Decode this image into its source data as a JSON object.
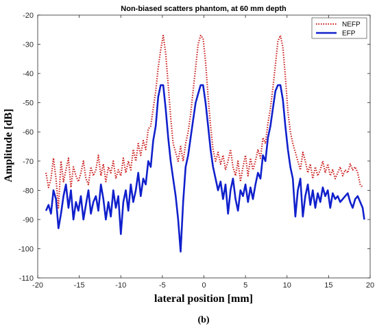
{
  "chart_data": {
    "type": "line",
    "title": "Non-biased scatters phantom, at 60 mm depth",
    "xlabel": "lateral position [mm]",
    "ylabel": "Amplitude [dB]",
    "caption": "(b)",
    "xlim": [
      -20,
      20
    ],
    "ylim": [
      -110,
      -20
    ],
    "xticks": [
      -20,
      -15,
      -10,
      -5,
      0,
      5,
      10,
      15,
      20
    ],
    "yticks": [
      -110,
      -100,
      -90,
      -80,
      -70,
      -60,
      -50,
      -40,
      -30,
      -20
    ],
    "grid": false,
    "legend": "top-right",
    "series": [
      {
        "name": "NEFP",
        "color": "#cc2020",
        "style": "dotted",
        "x": [
          -19.0,
          -18.7,
          -18.4,
          -18.1,
          -17.8,
          -17.5,
          -17.2,
          -16.9,
          -16.6,
          -16.3,
          -16.0,
          -15.7,
          -15.4,
          -15.1,
          -14.8,
          -14.5,
          -14.2,
          -13.9,
          -13.6,
          -13.3,
          -13.0,
          -12.7,
          -12.4,
          -12.1,
          -11.8,
          -11.5,
          -11.2,
          -10.9,
          -10.6,
          -10.3,
          -10.0,
          -9.7,
          -9.4,
          -9.1,
          -8.8,
          -8.5,
          -8.2,
          -7.9,
          -7.6,
          -7.3,
          -7.0,
          -6.7,
          -6.4,
          -6.1,
          -5.8,
          -5.5,
          -5.2,
          -4.9,
          -4.6,
          -4.3,
          -4.0,
          -3.7,
          -3.4,
          -3.1,
          -2.8,
          -2.5,
          -2.2,
          -1.9,
          -1.6,
          -1.3,
          -1.0,
          -0.7,
          -0.4,
          -0.1,
          0.2,
          0.5,
          0.8,
          1.1,
          1.4,
          1.7,
          2.0,
          2.3,
          2.6,
          2.9,
          3.2,
          3.5,
          3.8,
          4.1,
          4.4,
          4.7,
          5.0,
          5.3,
          5.6,
          5.9,
          6.2,
          6.5,
          6.8,
          7.1,
          7.4,
          7.7,
          8.0,
          8.3,
          8.6,
          8.9,
          9.2,
          9.5,
          9.8,
          10.1,
          10.4,
          10.7,
          11.0,
          11.3,
          11.6,
          11.9,
          12.2,
          12.5,
          12.8,
          13.1,
          13.4,
          13.7,
          14.0,
          14.3,
          14.6,
          14.9,
          15.2,
          15.5,
          15.8,
          16.1,
          16.4,
          16.7,
          17.0,
          17.3,
          17.6,
          17.9,
          18.2,
          18.5,
          18.8,
          19.1
        ],
        "y": [
          -74,
          -79,
          -76,
          -69,
          -76,
          -86,
          -70,
          -77,
          -73,
          -69,
          -79,
          -72,
          -75,
          -77,
          -74,
          -70,
          -76,
          -78,
          -72,
          -75,
          -73,
          -68,
          -75,
          -71,
          -77,
          -72,
          -74,
          -70,
          -76,
          -73,
          -75,
          -69,
          -74,
          -70,
          -73,
          -66,
          -70,
          -64,
          -68,
          -63,
          -66,
          -59,
          -58,
          -52,
          -46,
          -38,
          -32,
          -27,
          -33,
          -44,
          -55,
          -64,
          -67,
          -70,
          -65,
          -70,
          -64,
          -60,
          -54,
          -46,
          -38,
          -30,
          -27,
          -28,
          -36,
          -48,
          -58,
          -66,
          -70,
          -67,
          -71,
          -68,
          -73,
          -70,
          -66,
          -72,
          -75,
          -70,
          -77,
          -72,
          -68,
          -75,
          -69,
          -73,
          -70,
          -66,
          -69,
          -62,
          -64,
          -57,
          -52,
          -45,
          -37,
          -29,
          -27,
          -31,
          -41,
          -53,
          -60,
          -64,
          -67,
          -70,
          -73,
          -67,
          -70,
          -74,
          -71,
          -76,
          -72,
          -75,
          -73,
          -70,
          -74,
          -71,
          -75,
          -73,
          -76,
          -74,
          -72,
          -75,
          -73,
          -74,
          -71,
          -73,
          -72,
          -74,
          -78,
          -79
        ],
        "x_trim": "",
        "values_note": ""
      },
      {
        "name": "EFP",
        "color": "#1020cc",
        "style": "solid",
        "x": [
          -19.0,
          -18.7,
          -18.4,
          -18.1,
          -17.8,
          -17.5,
          -17.2,
          -16.9,
          -16.6,
          -16.3,
          -16.0,
          -15.7,
          -15.4,
          -15.1,
          -14.8,
          -14.5,
          -14.2,
          -13.9,
          -13.6,
          -13.3,
          -13.0,
          -12.7,
          -12.4,
          -12.1,
          -11.8,
          -11.5,
          -11.2,
          -10.9,
          -10.6,
          -10.3,
          -10.0,
          -9.7,
          -9.4,
          -9.1,
          -8.8,
          -8.5,
          -8.2,
          -7.9,
          -7.6,
          -7.3,
          -7.0,
          -6.7,
          -6.4,
          -6.1,
          -5.8,
          -5.5,
          -5.2,
          -4.9,
          -4.6,
          -4.3,
          -4.0,
          -3.7,
          -3.4,
          -3.1,
          -2.8,
          -2.5,
          -2.2,
          -1.9,
          -1.6,
          -1.3,
          -1.0,
          -0.7,
          -0.4,
          -0.1,
          0.2,
          0.5,
          0.8,
          1.1,
          1.4,
          1.7,
          2.0,
          2.3,
          2.6,
          2.9,
          3.2,
          3.5,
          3.8,
          4.1,
          4.4,
          4.7,
          5.0,
          5.3,
          5.6,
          5.9,
          6.2,
          6.5,
          6.8,
          7.1,
          7.4,
          7.7,
          8.0,
          8.3,
          8.6,
          8.9,
          9.2,
          9.5,
          9.8,
          10.1,
          10.4,
          10.7,
          11.0,
          11.3,
          11.6,
          11.9,
          12.2,
          12.5,
          12.8,
          13.1,
          13.4,
          13.7,
          14.0,
          14.3,
          14.6,
          14.9,
          15.2,
          15.5,
          15.8,
          16.1,
          16.4,
          16.7,
          17.0,
          17.3,
          17.6,
          17.9,
          18.2,
          18.5,
          18.8,
          19.1,
          19.3
        ],
        "y": [
          -87,
          -85,
          -88,
          -80,
          -83,
          -93,
          -88,
          -82,
          -78,
          -86,
          -80,
          -90,
          -84,
          -87,
          -82,
          -90,
          -85,
          -80,
          -88,
          -84,
          -82,
          -87,
          -78,
          -83,
          -90,
          -84,
          -89,
          -80,
          -86,
          -82,
          -95,
          -84,
          -80,
          -87,
          -78,
          -84,
          -80,
          -74,
          -82,
          -76,
          -78,
          -70,
          -72,
          -63,
          -58,
          -48,
          -44,
          -44,
          -52,
          -62,
          -70,
          -76,
          -82,
          -90,
          -101,
          -84,
          -72,
          -68,
          -62,
          -56,
          -50,
          -47,
          -44,
          -44,
          -50,
          -58,
          -66,
          -72,
          -76,
          -80,
          -77,
          -83,
          -78,
          -88,
          -80,
          -76,
          -83,
          -87,
          -80,
          -82,
          -78,
          -84,
          -79,
          -83,
          -78,
          -74,
          -76,
          -68,
          -70,
          -62,
          -58,
          -52,
          -46,
          -44,
          -44,
          -49,
          -58,
          -66,
          -72,
          -76,
          -89,
          -80,
          -76,
          -89,
          -82,
          -78,
          -85,
          -80,
          -86,
          -81,
          -84,
          -79,
          -82,
          -80,
          -86,
          -81,
          -83,
          -82,
          -84,
          -83,
          -82,
          -81,
          -84,
          -86,
          -83,
          -82,
          -84,
          -86,
          -90
        ]
      }
    ]
  }
}
